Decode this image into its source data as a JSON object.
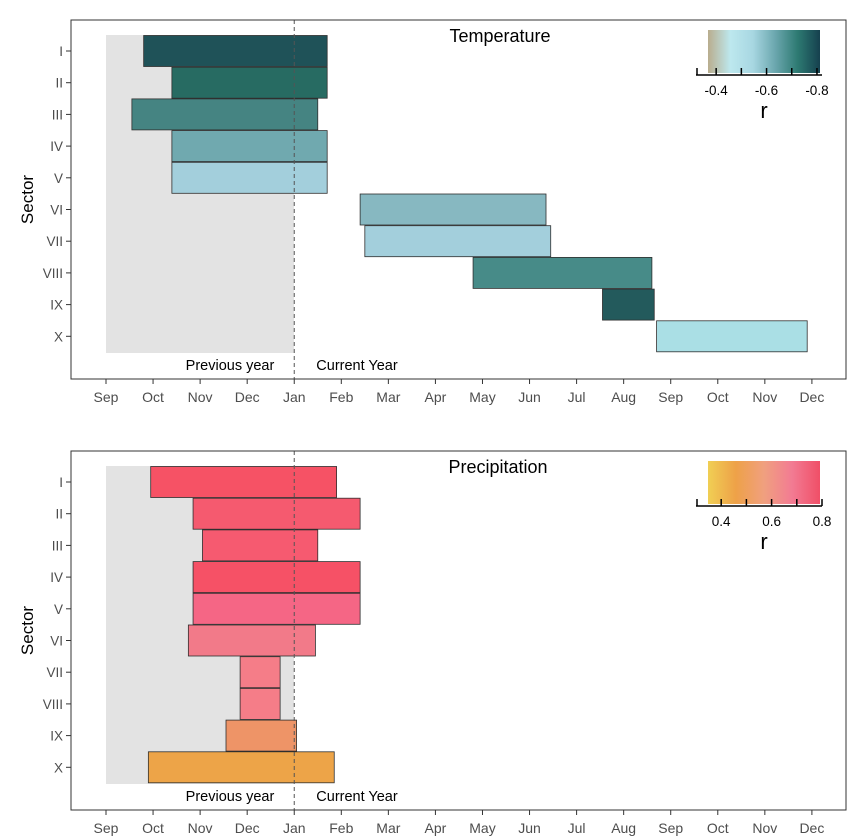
{
  "chart_data": [
    {
      "type": "bar",
      "title": "Temperature",
      "ylabel": "Sector",
      "month_ticks": [
        "Sep",
        "Oct",
        "Nov",
        "Dec",
        "Jan",
        "Feb",
        "Mar",
        "Apr",
        "May",
        "Jun",
        "Jul",
        "Aug",
        "Sep",
        "Oct",
        "Nov",
        "Dec"
      ],
      "sectors": [
        "I",
        "II",
        "III",
        "IV",
        "V",
        "VI",
        "VII",
        "VIII",
        "IX",
        "X"
      ],
      "annotations": {
        "previous": "Previous year",
        "current": "Current Year"
      },
      "legend": {
        "title": "r",
        "ticks": [
          "-0.4",
          "-0.6",
          "-0.8"
        ],
        "tick_values": [
          -0.4,
          -0.6,
          -0.8
        ],
        "range": [
          -0.32,
          -0.82
        ],
        "colors": [
          "#b9ad8e",
          "#bde8ee",
          "#a8d7e2",
          "#6ba7ae",
          "#2d7a72",
          "#15404e"
        ]
      },
      "shaded_region": [
        "Sep",
        "Jan"
      ],
      "bars": [
        {
          "sector": "I",
          "start": 0.8,
          "end": 4.7,
          "r": -0.8,
          "color": "#1f5258"
        },
        {
          "sector": "II",
          "start": 1.4,
          "end": 4.7,
          "r": -0.74,
          "color": "#276b62"
        },
        {
          "sector": "III",
          "start": 0.55,
          "end": 4.5,
          "r": -0.65,
          "color": "#458482"
        },
        {
          "sector": "IV",
          "start": 1.4,
          "end": 4.7,
          "r": -0.57,
          "color": "#70a9af"
        },
        {
          "sector": "V",
          "start": 1.4,
          "end": 4.7,
          "r": -0.5,
          "color": "#a3cfdc"
        },
        {
          "sector": "VI",
          "start": 5.4,
          "end": 9.35,
          "r": -0.55,
          "color": "#87b8c1"
        },
        {
          "sector": "VII",
          "start": 5.5,
          "end": 9.45,
          "r": -0.5,
          "color": "#a3cfdc"
        },
        {
          "sector": "VIII",
          "start": 7.8,
          "end": 11.6,
          "r": -0.66,
          "color": "#478b88"
        },
        {
          "sector": "IX",
          "start": 10.55,
          "end": 11.65,
          "r": -0.78,
          "color": "#235a5c"
        },
        {
          "sector": "X",
          "start": 11.7,
          "end": 14.9,
          "r": -0.48,
          "color": "#aadfe5"
        }
      ]
    },
    {
      "type": "bar",
      "title": "Precipitation",
      "ylabel": "Sector",
      "month_ticks": [
        "Sep",
        "Oct",
        "Nov",
        "Dec",
        "Jan",
        "Feb",
        "Mar",
        "Apr",
        "May",
        "Jun",
        "Jul",
        "Aug",
        "Sep",
        "Oct",
        "Nov",
        "Dec"
      ],
      "sectors": [
        "I",
        "II",
        "III",
        "IV",
        "V",
        "VI",
        "VII",
        "VIII",
        "IX",
        "X"
      ],
      "annotations": {
        "previous": "Previous year",
        "current": "Current Year"
      },
      "legend": {
        "title": "r",
        "ticks": [
          "0.4",
          "0.6",
          "0.8"
        ],
        "tick_values": [
          0.4,
          0.6,
          0.8
        ],
        "range": [
          0.3,
          0.8
        ],
        "colors": [
          "#f0cf54",
          "#eea148",
          "#f0a07f",
          "#f27b93",
          "#f04f67"
        ]
      },
      "shaded_region": [
        "Sep",
        "Jan"
      ],
      "bars": [
        {
          "sector": "I",
          "start": 0.95,
          "end": 4.9,
          "r": 0.77,
          "color": "#f65265"
        },
        {
          "sector": "II",
          "start": 1.85,
          "end": 5.4,
          "r": 0.73,
          "color": "#f55a6f"
        },
        {
          "sector": "III",
          "start": 2.05,
          "end": 4.5,
          "r": 0.74,
          "color": "#f65a70"
        },
        {
          "sector": "IV",
          "start": 1.85,
          "end": 5.4,
          "r": 0.77,
          "color": "#f65166"
        },
        {
          "sector": "V",
          "start": 1.85,
          "end": 5.4,
          "r": 0.7,
          "color": "#f56685"
        },
        {
          "sector": "VI",
          "start": 1.75,
          "end": 4.45,
          "r": 0.64,
          "color": "#f27a89"
        },
        {
          "sector": "VII",
          "start": 2.85,
          "end": 3.7,
          "r": 0.63,
          "color": "#f57d88"
        },
        {
          "sector": "VIII",
          "start": 2.85,
          "end": 3.7,
          "r": 0.63,
          "color": "#f57d88"
        },
        {
          "sector": "IX",
          "start": 2.55,
          "end": 4.05,
          "r": 0.52,
          "color": "#ee9467"
        },
        {
          "sector": "X",
          "start": 0.9,
          "end": 4.85,
          "r": 0.44,
          "color": "#eda448"
        }
      ]
    }
  ]
}
